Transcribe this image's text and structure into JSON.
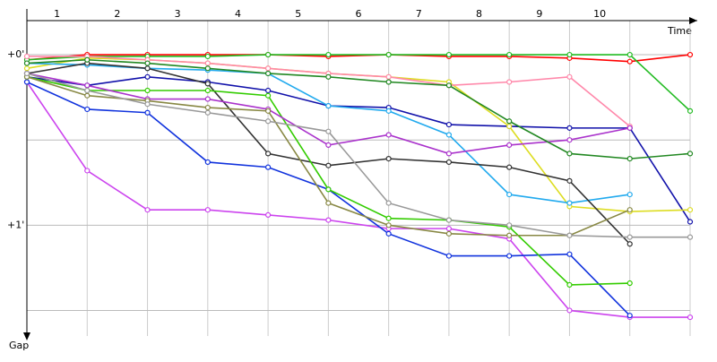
{
  "chart_data": {
    "type": "line",
    "x_label": "Time",
    "y_label": "Gap",
    "categories": [
      "1",
      "2",
      "3",
      "4",
      "5",
      "6",
      "7",
      "8",
      "9",
      "10"
    ],
    "x": [
      0,
      1,
      2,
      3,
      4,
      5,
      6,
      7,
      8,
      9,
      10,
      11
    ],
    "xlim": [
      0,
      11
    ],
    "ylim": [
      -0.2,
      1.65
    ],
    "yticks": [
      {
        "value": 0,
        "label": "+0'"
      },
      {
        "value": 1,
        "label": "+1'"
      }
    ],
    "ygrid": [
      0,
      0.5,
      1,
      1.5
    ],
    "series": [
      {
        "color": "#ff0000",
        "values": [
          0.03,
          0,
          0,
          0,
          0,
          0.01,
          0,
          0.01,
          0.01,
          0.02,
          0.04,
          0
        ]
      },
      {
        "color": "#22bb22",
        "values": [
          0.03,
          0.01,
          0.01,
          0.01,
          0,
          0,
          0,
          0,
          0,
          0,
          0,
          0.33
        ]
      },
      {
        "color": "#cc44ee",
        "values": [
          0.16,
          0.68,
          0.91,
          0.91,
          0.94,
          0.97,
          1.02,
          1.02,
          1.08,
          1.5,
          1.54,
          1.54
        ]
      },
      {
        "color": "#1111aa",
        "values": [
          0.13,
          0.18,
          0.13,
          0.16,
          0.21,
          0.3,
          0.31,
          0.41,
          0.42,
          0.43,
          0.43,
          0.98
        ]
      },
      {
        "color": "#1133dd",
        "values": [
          0.16,
          0.32,
          0.34,
          0.63,
          0.66,
          0.79,
          1.05,
          1.18,
          1.18,
          1.17,
          1.53,
          null
        ]
      },
      {
        "color": "#dddd22",
        "values": [
          0.08,
          0.02,
          0.03,
          0.05,
          0.08,
          0.11,
          0.13,
          0.16,
          0.42,
          0.89,
          0.92,
          0.91
        ]
      },
      {
        "color": "#ff88aa",
        "values": [
          0.01,
          0.01,
          0.03,
          0.05,
          0.08,
          0.11,
          0.13,
          0.18,
          0.16,
          0.13,
          0.42,
          null
        ]
      },
      {
        "color": "#22aaee",
        "values": [
          0.05,
          0.06,
          0.08,
          0.09,
          0.11,
          0.3,
          0.33,
          0.47,
          0.82,
          0.87,
          0.82,
          null
        ]
      },
      {
        "color": "#333333",
        "values": [
          0.11,
          0.05,
          0.08,
          0.17,
          0.58,
          0.65,
          0.61,
          0.63,
          0.66,
          0.74,
          1.11,
          null
        ]
      },
      {
        "color": "#33cc00",
        "values": [
          0.13,
          0.21,
          0.21,
          0.21,
          0.24,
          0.79,
          0.96,
          0.97,
          1.01,
          1.35,
          1.34,
          null
        ]
      },
      {
        "color": "#aa33cc",
        "values": [
          0.11,
          0.18,
          0.26,
          0.26,
          0.32,
          0.53,
          0.47,
          0.58,
          0.53,
          0.5,
          0.43,
          null
        ]
      },
      {
        "color": "#888844",
        "values": [
          0.13,
          0.24,
          0.27,
          0.31,
          0.33,
          0.87,
          1.0,
          1.05,
          1.06,
          1.06,
          0.91,
          null
        ]
      },
      {
        "color": "#999999",
        "values": [
          0.11,
          0.21,
          0.29,
          0.34,
          0.39,
          0.45,
          0.87,
          0.97,
          1.0,
          1.06,
          1.07,
          1.07
        ]
      },
      {
        "color": "#228822",
        "values": [
          0.05,
          0.03,
          0.05,
          0.08,
          0.11,
          0.13,
          0.16,
          0.18,
          0.39,
          0.58,
          0.61,
          0.58
        ]
      }
    ]
  }
}
